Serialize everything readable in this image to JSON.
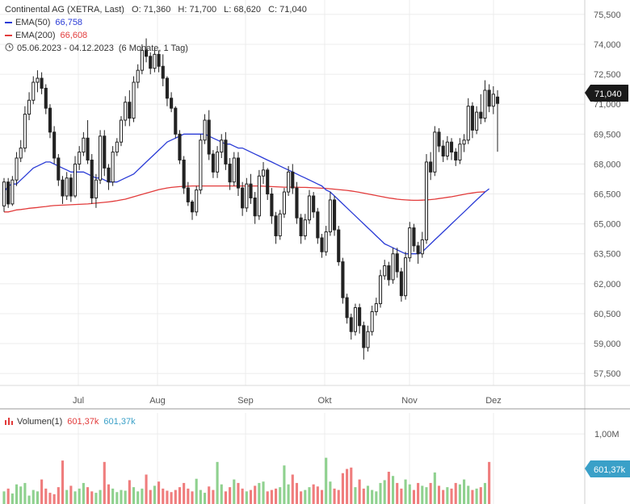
{
  "header": {
    "title": "Continental AG (XETRA, Last)",
    "open": "O: 71,360",
    "high": "H: 71,700",
    "low": "L: 68,620",
    "close": "C: 71,040",
    "ema50_label": "EMA(50)",
    "ema50_value": "66,758",
    "ema200_label": "EMA(200)",
    "ema200_value": "66,608",
    "range": "05.06.2023 - 04.12.2023",
    "interval": "(6 Monate, 1 Tag)"
  },
  "volume_legend": {
    "label": "Volumen(1)",
    "value1": "601,37k",
    "value2": "601,37k"
  },
  "colors": {
    "up": "#222222",
    "ema50": "#2a3bd6",
    "ema200": "#e23b3b",
    "vol_up": "#8fd18f",
    "vol_down": "#ef7d7d",
    "price_tag": "#1a1a1a",
    "vol_tag": "#3aa0c8"
  },
  "chart_data": [
    {
      "type": "candlestick",
      "title": "Continental AG (XETRA, Last)",
      "x_ticks": [
        "Jul",
        "Aug",
        "Sep",
        "Okt",
        "Nov",
        "Dez"
      ],
      "y_ticks": [
        "57,500",
        "59,000",
        "60,500",
        "62,000",
        "63,500",
        "65,000",
        "66,500",
        "68,000",
        "69,500",
        "71,000",
        "72,500",
        "74,000",
        "75,500"
      ],
      "ylim": [
        56.9,
        75.9
      ],
      "last_price": "71,040",
      "grid": true,
      "ohlc": [
        [
          65.9,
          67.3,
          65.6,
          67.1
        ],
        [
          67.1,
          67.3,
          65.8,
          66.0
        ],
        [
          66.0,
          67.4,
          65.9,
          67.2
        ],
        [
          67.2,
          68.6,
          66.9,
          68.3
        ],
        [
          68.3,
          69.2,
          68.1,
          68.8
        ],
        [
          68.8,
          70.9,
          68.6,
          70.5
        ],
        [
          70.5,
          71.6,
          70.2,
          71.2
        ],
        [
          71.2,
          72.4,
          71.0,
          72.1
        ],
        [
          72.1,
          72.7,
          71.6,
          72.3
        ],
        [
          72.3,
          72.6,
          71.5,
          71.8
        ],
        [
          71.8,
          72.0,
          70.5,
          70.8
        ],
        [
          70.8,
          71.0,
          69.3,
          69.6
        ],
        [
          69.6,
          69.9,
          68.0,
          68.3
        ],
        [
          68.3,
          68.5,
          66.9,
          67.2
        ],
        [
          67.2,
          67.4,
          66.0,
          66.4
        ],
        [
          66.4,
          67.6,
          66.2,
          67.3
        ],
        [
          67.3,
          67.5,
          66.1,
          66.4
        ],
        [
          66.4,
          68.4,
          66.3,
          68.0
        ],
        [
          68.0,
          68.9,
          67.7,
          68.6
        ],
        [
          68.6,
          69.6,
          68.4,
          69.3
        ],
        [
          69.3,
          70.2,
          68.0,
          68.2
        ],
        [
          68.2,
          68.5,
          66.0,
          66.3
        ],
        [
          66.3,
          67.5,
          65.8,
          67.2
        ],
        [
          67.2,
          69.7,
          67.0,
          69.4
        ],
        [
          69.4,
          69.7,
          67.4,
          67.8
        ],
        [
          67.8,
          68.0,
          66.7,
          67.1
        ],
        [
          67.1,
          68.9,
          66.9,
          68.6
        ],
        [
          68.6,
          69.3,
          68.4,
          69.1
        ],
        [
          69.1,
          70.4,
          68.9,
          70.2
        ],
        [
          70.2,
          71.4,
          69.9,
          71.1
        ],
        [
          71.1,
          71.7,
          69.9,
          70.3
        ],
        [
          70.3,
          72.4,
          70.1,
          72.1
        ],
        [
          72.1,
          73.0,
          71.8,
          72.7
        ],
        [
          72.7,
          74.0,
          72.5,
          73.7
        ],
        [
          73.7,
          74.3,
          73.1,
          73.4
        ],
        [
          73.4,
          73.6,
          72.5,
          72.8
        ],
        [
          72.8,
          73.8,
          72.6,
          73.5
        ],
        [
          73.5,
          73.7,
          72.6,
          72.9
        ],
        [
          72.9,
          73.5,
          71.9,
          72.3
        ],
        [
          72.3,
          72.4,
          70.9,
          71.3
        ],
        [
          71.3,
          71.6,
          70.6,
          70.8
        ],
        [
          70.8,
          70.9,
          69.3,
          69.5
        ],
        [
          69.5,
          69.7,
          68.0,
          68.2
        ],
        [
          68.2,
          68.4,
          66.5,
          66.8
        ],
        [
          66.8,
          67.1,
          65.9,
          66.1
        ],
        [
          66.1,
          66.2,
          65.2,
          65.6
        ],
        [
          65.6,
          66.9,
          65.4,
          66.7
        ],
        [
          66.7,
          69.5,
          66.5,
          69.2
        ],
        [
          69.2,
          70.5,
          69.0,
          70.2
        ],
        [
          70.2,
          70.7,
          68.2,
          68.5
        ],
        [
          68.5,
          68.7,
          67.3,
          67.6
        ],
        [
          67.6,
          68.9,
          67.3,
          68.6
        ],
        [
          68.6,
          69.5,
          68.3,
          69.2
        ],
        [
          69.2,
          69.6,
          67.7,
          68.0
        ],
        [
          68.0,
          68.3,
          66.7,
          67.1
        ],
        [
          67.1,
          68.6,
          66.9,
          68.3
        ],
        [
          68.3,
          68.6,
          66.4,
          66.8
        ],
        [
          66.8,
          67.1,
          65.4,
          65.8
        ],
        [
          65.8,
          67.3,
          65.6,
          67.0
        ],
        [
          67.0,
          67.5,
          66.0,
          66.3
        ],
        [
          66.3,
          66.6,
          65.0,
          65.4
        ],
        [
          65.4,
          67.7,
          65.2,
          67.4
        ],
        [
          67.4,
          68.1,
          67.0,
          67.7
        ],
        [
          67.7,
          67.8,
          66.2,
          66.5
        ],
        [
          66.5,
          66.8,
          65.0,
          65.4
        ],
        [
          65.4,
          65.6,
          64.0,
          64.4
        ],
        [
          64.4,
          65.7,
          64.2,
          65.5
        ],
        [
          65.5,
          66.8,
          65.3,
          66.6
        ],
        [
          66.6,
          67.9,
          66.4,
          67.6
        ],
        [
          67.6,
          68.0,
          66.5,
          66.8
        ],
        [
          66.8,
          67.1,
          65.0,
          65.3
        ],
        [
          65.3,
          65.5,
          64.0,
          64.4
        ],
        [
          64.4,
          65.5,
          64.2,
          65.2
        ],
        [
          65.2,
          66.7,
          65.0,
          66.4
        ],
        [
          66.4,
          66.6,
          65.3,
          65.6
        ],
        [
          65.6,
          65.8,
          64.0,
          64.3
        ],
        [
          64.3,
          64.5,
          63.3,
          63.6
        ],
        [
          63.6,
          64.9,
          63.4,
          64.6
        ],
        [
          64.6,
          66.6,
          64.4,
          66.2
        ],
        [
          66.2,
          66.4,
          64.4,
          64.7
        ],
        [
          64.7,
          64.9,
          62.9,
          63.1
        ],
        [
          63.1,
          63.3,
          61.0,
          61.3
        ],
        [
          61.3,
          61.5,
          60.0,
          60.3
        ],
        [
          60.3,
          60.5,
          59.2,
          59.6
        ],
        [
          59.6,
          61.0,
          59.4,
          60.8
        ],
        [
          60.8,
          61.0,
          59.5,
          59.9
        ],
        [
          59.9,
          60.1,
          58.2,
          58.8
        ],
        [
          58.8,
          59.9,
          58.6,
          59.6
        ],
        [
          59.6,
          60.9,
          59.4,
          60.6
        ],
        [
          60.6,
          61.3,
          60.4,
          61.0
        ],
        [
          61.0,
          62.7,
          60.8,
          62.4
        ],
        [
          62.4,
          63.2,
          62.2,
          62.9
        ],
        [
          62.9,
          63.1,
          61.9,
          62.2
        ],
        [
          62.2,
          63.8,
          62.0,
          63.5
        ],
        [
          63.5,
          63.8,
          62.3,
          62.6
        ],
        [
          62.6,
          62.8,
          61.1,
          61.4
        ],
        [
          61.4,
          63.6,
          61.2,
          63.3
        ],
        [
          63.3,
          65.1,
          63.1,
          64.8
        ],
        [
          64.8,
          65.0,
          63.6,
          63.9
        ],
        [
          63.9,
          64.1,
          63.0,
          63.5
        ],
        [
          63.5,
          64.6,
          63.3,
          64.2
        ],
        [
          64.2,
          68.5,
          64.0,
          68.1
        ],
        [
          68.1,
          68.6,
          67.2,
          67.6
        ],
        [
          67.6,
          69.9,
          67.4,
          69.6
        ],
        [
          69.6,
          69.8,
          68.6,
          68.9
        ],
        [
          68.9,
          69.2,
          68.1,
          68.4
        ],
        [
          68.4,
          69.4,
          68.2,
          69.1
        ],
        [
          69.1,
          69.3,
          68.2,
          68.6
        ],
        [
          68.6,
          68.8,
          67.9,
          68.2
        ],
        [
          68.2,
          69.3,
          68.0,
          69.0
        ],
        [
          69.0,
          69.5,
          68.6,
          69.2
        ],
        [
          69.2,
          71.3,
          69.0,
          70.9
        ],
        [
          70.9,
          71.1,
          69.3,
          69.7
        ],
        [
          69.7,
          70.9,
          69.5,
          70.6
        ],
        [
          70.6,
          71.5,
          70.0,
          70.3
        ],
        [
          70.3,
          72.2,
          70.1,
          71.7
        ],
        [
          71.7,
          72.0,
          70.6,
          70.9
        ],
        [
          70.9,
          71.9,
          70.5,
          71.5
        ],
        [
          71.36,
          71.7,
          68.62,
          71.04
        ]
      ],
      "ema50": [
        66.6,
        66.9,
        67.0,
        67.0,
        67.2,
        67.4,
        67.6,
        67.8,
        67.9,
        68.0,
        68.1,
        68.1,
        68.0,
        67.9,
        67.8,
        67.7,
        67.6,
        67.6,
        67.6,
        67.6,
        67.5,
        67.4,
        67.3,
        67.3,
        67.2,
        67.1,
        67.1,
        67.1,
        67.2,
        67.3,
        67.4,
        67.5,
        67.7,
        67.9,
        68.1,
        68.3,
        68.5,
        68.7,
        68.9,
        69.1,
        69.2,
        69.3,
        69.4,
        69.5,
        69.5,
        69.5,
        69.5,
        69.5,
        69.5,
        69.4,
        69.3,
        69.2,
        69.1,
        69.0,
        69.0,
        68.9,
        68.8,
        68.8,
        68.7,
        68.6,
        68.5,
        68.4,
        68.3,
        68.2,
        68.1,
        68.0,
        67.9,
        67.8,
        67.7,
        67.6,
        67.5,
        67.4,
        67.3,
        67.2,
        67.1,
        67.0,
        66.9,
        66.7,
        66.6,
        66.4,
        66.2,
        66.0,
        65.8,
        65.6,
        65.4,
        65.2,
        65.0,
        64.8,
        64.6,
        64.4,
        64.2,
        64.0,
        63.9,
        63.8,
        63.7,
        63.6,
        63.5,
        63.5,
        63.5,
        63.5,
        63.6,
        63.8,
        64.0,
        64.2,
        64.4,
        64.6,
        64.8,
        65.0,
        65.2,
        65.4,
        65.6,
        65.8,
        66.0,
        66.2,
        66.4,
        66.6,
        66.76
      ],
      "ema200": [
        65.6,
        65.6,
        65.65,
        65.7,
        65.72,
        65.75,
        65.78,
        65.8,
        65.82,
        65.85,
        65.87,
        65.9,
        65.92,
        65.93,
        65.94,
        65.95,
        65.96,
        65.97,
        65.98,
        65.99,
        66.0,
        66.02,
        66.04,
        66.06,
        66.08,
        66.1,
        66.13,
        66.16,
        66.2,
        66.24,
        66.3,
        66.36,
        66.42,
        66.48,
        66.54,
        66.6,
        66.66,
        66.72,
        66.76,
        66.8,
        66.83,
        66.85,
        66.87,
        66.88,
        66.89,
        66.9,
        66.9,
        66.9,
        66.9,
        66.9,
        66.9,
        66.9,
        66.9,
        66.9,
        66.9,
        66.9,
        66.9,
        66.9,
        66.9,
        66.9,
        66.9,
        66.9,
        66.89,
        66.88,
        66.87,
        66.86,
        66.85,
        66.84,
        66.84,
        66.84,
        66.84,
        66.83,
        66.83,
        66.82,
        66.81,
        66.8,
        66.79,
        66.78,
        66.76,
        66.74,
        66.72,
        66.7,
        66.68,
        66.65,
        66.62,
        66.58,
        66.54,
        66.5,
        66.46,
        66.42,
        66.38,
        66.34,
        66.3,
        66.27,
        66.24,
        66.22,
        66.2,
        66.19,
        66.18,
        66.18,
        66.19,
        66.2,
        66.22,
        66.24,
        66.27,
        66.3,
        66.33,
        66.36,
        66.4,
        66.44,
        66.48,
        66.52,
        66.55,
        66.58,
        66.6,
        66.61
      ]
    },
    {
      "type": "bar",
      "title": "Volumen(1)",
      "y_ticks": [
        "1,00M"
      ],
      "ylim": [
        0,
        1.3
      ],
      "last_value": "601,37k",
      "values": [
        0.18,
        0.22,
        0.15,
        0.28,
        0.25,
        0.3,
        0.12,
        0.2,
        0.18,
        0.35,
        0.22,
        0.16,
        0.14,
        0.24,
        0.62,
        0.2,
        0.26,
        0.18,
        0.22,
        0.3,
        0.24,
        0.18,
        0.16,
        0.2,
        0.6,
        0.28,
        0.22,
        0.17,
        0.2,
        0.19,
        0.34,
        0.24,
        0.18,
        0.22,
        0.42,
        0.2,
        0.26,
        0.32,
        0.22,
        0.19,
        0.17,
        0.2,
        0.24,
        0.3,
        0.22,
        0.18,
        0.36,
        0.2,
        0.16,
        0.25,
        0.2,
        0.6,
        0.28,
        0.18,
        0.24,
        0.35,
        0.3,
        0.22,
        0.18,
        0.2,
        0.26,
        0.3,
        0.32,
        0.18,
        0.2,
        0.22,
        0.24,
        0.55,
        0.28,
        0.42,
        0.3,
        0.18,
        0.2,
        0.24,
        0.28,
        0.25,
        0.2,
        0.66,
        0.32,
        0.22,
        0.2,
        0.44,
        0.5,
        0.52,
        0.24,
        0.35,
        0.22,
        0.26,
        0.2,
        0.18,
        0.3,
        0.34,
        0.46,
        0.4,
        0.3,
        0.22,
        0.35,
        0.28,
        0.2,
        0.3,
        0.26,
        0.24,
        0.3,
        0.45,
        0.26,
        0.2,
        0.24,
        0.22,
        0.3,
        0.28,
        0.35,
        0.26,
        0.2,
        0.22,
        0.24,
        0.3,
        0.6
      ]
    }
  ]
}
